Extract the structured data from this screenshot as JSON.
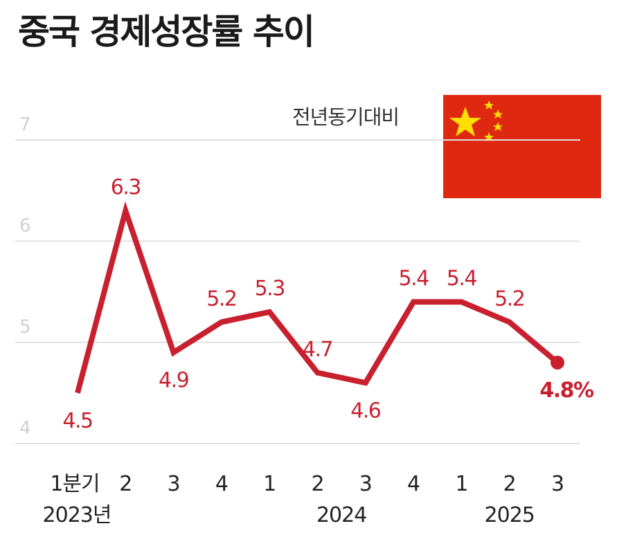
{
  "title": "중국 경제성장률 추이",
  "subtitle": "전년동기대비",
  "colors": {
    "line": "#c8202e",
    "flag_red": "#de2910",
    "flag_star": "#ffde00",
    "grid": "#e2e2e2"
  },
  "flag_icon": "china-flag-icon",
  "chart_data": {
    "type": "line",
    "categories": [
      "1분기",
      "2",
      "3",
      "4",
      "1",
      "2",
      "3",
      "4",
      "1",
      "2",
      "3"
    ],
    "years": [
      {
        "label": "2023년",
        "start": 0,
        "end": 1
      },
      {
        "label": "2024",
        "start": 4,
        "end": 7
      },
      {
        "label": "2025",
        "start": 8,
        "end": 10
      }
    ],
    "values": [
      4.5,
      6.3,
      4.9,
      5.2,
      5.3,
      4.7,
      4.6,
      5.4,
      5.4,
      5.2,
      4.8
    ],
    "value_labels": [
      "4.5",
      "6.3",
      "4.9",
      "5.2",
      "5.3",
      "4.7",
      "4.6",
      "5.4",
      "5.4",
      "5.2",
      "4.8%"
    ],
    "yticks": [
      4,
      5,
      6,
      7
    ],
    "ylim": [
      4,
      7
    ],
    "grid": true,
    "last_point_marker": true
  }
}
